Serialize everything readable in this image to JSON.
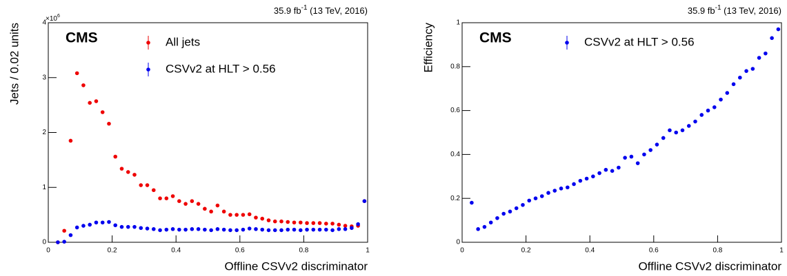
{
  "chart_data": [
    {
      "type": "scatter",
      "lumi": "35.9 fb",
      "lumi_sup": "-1",
      "lumi_rest": " (13 TeV, 2016)",
      "experiment": "CMS",
      "xlabel": "Offline CSVv2 discriminator",
      "ylabel": "Jets / 0.02 units",
      "y_multiplier": "×10",
      "y_multiplier_exp": "6",
      "xlim": [
        0,
        1
      ],
      "ylim": [
        0,
        4
      ],
      "xticks": [
        0,
        0.2,
        0.4,
        0.6,
        0.8,
        1
      ],
      "yticks": [
        0,
        1,
        2,
        3,
        4
      ],
      "x": [
        0.03,
        0.05,
        0.07,
        0.09,
        0.11,
        0.13,
        0.15,
        0.17,
        0.19,
        0.21,
        0.23,
        0.25,
        0.27,
        0.29,
        0.31,
        0.33,
        0.35,
        0.37,
        0.39,
        0.41,
        0.43,
        0.45,
        0.47,
        0.49,
        0.51,
        0.53,
        0.55,
        0.57,
        0.59,
        0.61,
        0.63,
        0.65,
        0.67,
        0.69,
        0.71,
        0.73,
        0.75,
        0.77,
        0.79,
        0.81,
        0.83,
        0.85,
        0.87,
        0.89,
        0.91,
        0.93,
        0.95,
        0.97,
        0.99
      ],
      "series": [
        {
          "name": "All jets",
          "color": "#ee0000",
          "values": [
            0,
            0.21,
            1.85,
            3.08,
            2.86,
            2.54,
            2.57,
            2.37,
            2.16,
            1.56,
            1.34,
            1.28,
            1.23,
            1.04,
            1.04,
            0.95,
            0.8,
            0.8,
            0.84,
            0.75,
            0.7,
            0.75,
            0.7,
            0.61,
            0.56,
            0.67,
            0.56,
            0.5,
            0.5,
            0.5,
            0.51,
            0.45,
            0.43,
            0.4,
            0.38,
            0.38,
            0.37,
            0.36,
            0.36,
            0.35,
            0.35,
            0.35,
            0.34,
            0.34,
            0.32,
            0.3,
            0.29,
            0.3,
            0.75
          ]
        },
        {
          "name": "CSVv2 at HLT > 0.56",
          "color": "#0000ee",
          "values": [
            0,
            0.01,
            0.13,
            0.27,
            0.3,
            0.32,
            0.36,
            0.36,
            0.37,
            0.31,
            0.28,
            0.28,
            0.28,
            0.26,
            0.25,
            0.24,
            0.22,
            0.23,
            0.24,
            0.23,
            0.23,
            0.24,
            0.24,
            0.23,
            0.22,
            0.24,
            0.23,
            0.22,
            0.22,
            0.23,
            0.25,
            0.24,
            0.23,
            0.22,
            0.22,
            0.22,
            0.23,
            0.23,
            0.22,
            0.23,
            0.23,
            0.23,
            0.23,
            0.22,
            0.24,
            0.24,
            0.26,
            0.33,
            0.75
          ]
        }
      ]
    },
    {
      "type": "scatter",
      "lumi": "35.9 fb",
      "lumi_sup": "-1",
      "lumi_rest": " (13 TeV, 2016)",
      "experiment": "CMS",
      "xlabel": "Offline CSVv2 discriminator",
      "ylabel": "Efficiency",
      "xlim": [
        0,
        1
      ],
      "ylim": [
        0,
        1
      ],
      "xticks": [
        0,
        0.2,
        0.4,
        0.6,
        0.8,
        1
      ],
      "yticks": [
        0,
        0.2,
        0.4,
        0.6,
        0.8,
        1
      ],
      "x": [
        0.03,
        0.05,
        0.07,
        0.09,
        0.11,
        0.13,
        0.15,
        0.17,
        0.19,
        0.21,
        0.23,
        0.25,
        0.27,
        0.29,
        0.31,
        0.33,
        0.35,
        0.37,
        0.39,
        0.41,
        0.43,
        0.45,
        0.47,
        0.49,
        0.51,
        0.53,
        0.55,
        0.57,
        0.59,
        0.61,
        0.63,
        0.65,
        0.67,
        0.69,
        0.71,
        0.73,
        0.75,
        0.77,
        0.79,
        0.81,
        0.83,
        0.85,
        0.87,
        0.89,
        0.91,
        0.93,
        0.95,
        0.97,
        0.99
      ],
      "series": [
        {
          "name": "CSVv2 at HLT > 0.56",
          "color": "#0000ee",
          "values": [
            0.18,
            0.06,
            0.07,
            0.09,
            0.11,
            0.13,
            0.14,
            0.155,
            0.17,
            0.19,
            0.2,
            0.21,
            0.225,
            0.235,
            0.245,
            0.25,
            0.265,
            0.28,
            0.29,
            0.3,
            0.315,
            0.33,
            0.325,
            0.34,
            0.385,
            0.39,
            0.36,
            0.4,
            0.42,
            0.445,
            0.475,
            0.51,
            0.5,
            0.51,
            0.53,
            0.55,
            0.58,
            0.6,
            0.615,
            0.65,
            0.68,
            0.72,
            0.75,
            0.78,
            0.79,
            0.84,
            0.86,
            0.93,
            0.97
          ]
        }
      ]
    }
  ]
}
